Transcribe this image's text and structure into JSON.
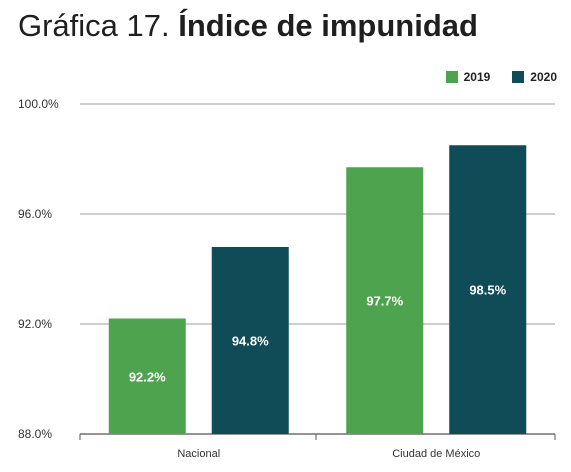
{
  "chart_data": {
    "type": "bar",
    "title_prefix": "Gráfica 17.",
    "title": "Índice de impunidad",
    "categories": [
      "Nacional",
      "Ciudad de México"
    ],
    "series": [
      {
        "name": "2019",
        "color": "#4ea44e",
        "values": [
          92.2,
          97.7
        ],
        "labels": [
          "92.2%",
          "97.7%"
        ]
      },
      {
        "name": "2020",
        "color": "#0f4c57",
        "values": [
          94.8,
          98.5
        ],
        "labels": [
          "94.8%",
          "98.5%"
        ]
      }
    ],
    "ylim": [
      88,
      100
    ],
    "yticks": [
      88,
      92,
      96,
      100
    ],
    "ytick_labels": [
      "88.0%",
      "92.0%",
      "96.0%",
      "100.0%"
    ],
    "grid": true,
    "legend_position": "top-right"
  }
}
